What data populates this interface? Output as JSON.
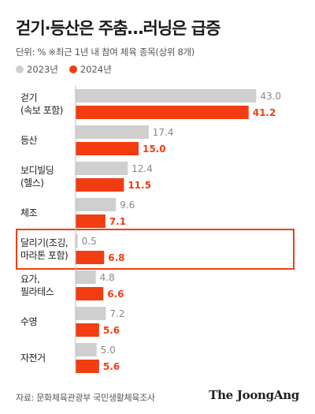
{
  "header": {
    "title": "걷기·등산은 주춤…러닝은 급증",
    "subtitle": "단위: % ※최근 1년 내 참여 체육 종목(상위 8개)"
  },
  "legend": [
    {
      "label": "2023년",
      "color": "#cfcfcf"
    },
    {
      "label": "2024년",
      "color": "#f23d12"
    }
  ],
  "footer": {
    "source": "자료: 문화체육관광부 국민생활체육조사",
    "logo": "The JoongAng"
  },
  "chart_data": {
    "type": "bar",
    "orientation": "horizontal",
    "categories": [
      "걷기\n(속보 포함)",
      "등산",
      "보디빌딩\n(헬스)",
      "체조",
      "달리기(조깅,\n마라톤 포함)",
      "요가,\n필라테스",
      "수영",
      "자전거"
    ],
    "series": [
      {
        "name": "2023년",
        "color": "#cfcfcf",
        "values": [
          43.0,
          17.4,
          12.4,
          9.6,
          0.5,
          4.8,
          7.2,
          5.0
        ]
      },
      {
        "name": "2024년",
        "color": "#f23d12",
        "values": [
          41.2,
          15.0,
          11.5,
          7.1,
          6.8,
          6.6,
          5.6,
          5.6
        ]
      }
    ],
    "value_labels": [
      [
        "43.0",
        "17.4",
        "12.4",
        "9.6",
        "0.5",
        "4.8",
        "7.2",
        "5.0"
      ],
      [
        "41.2",
        "15.0",
        "11.5",
        "7.1",
        "6.8",
        "6.6",
        "5.6",
        "5.6"
      ]
    ],
    "highlighted_category": "달리기(조깅,\n마라톤 포함)",
    "highlight_color": "#f23d12",
    "xlim": [
      0,
      48
    ],
    "title": "걷기·등산은 주춤…러닝은 급증",
    "xlabel": "",
    "ylabel": ""
  }
}
